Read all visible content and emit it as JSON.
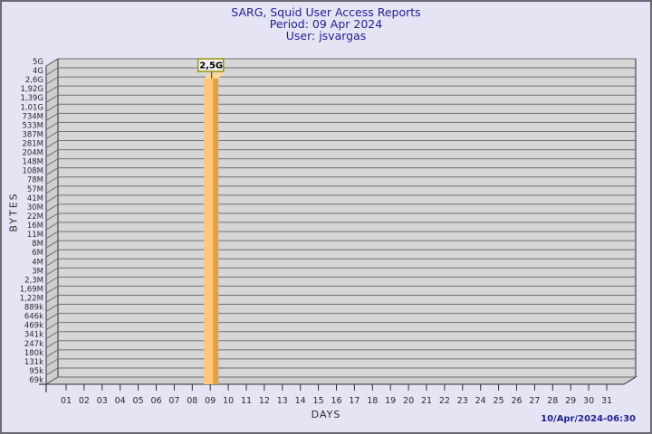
{
  "header": {
    "title": "SARG, Squid User Access Reports",
    "period": "Period: 09 Apr 2024",
    "user": "User: jsvargas"
  },
  "footer": {
    "timestamp": "10/Apr/2024-06:30"
  },
  "chart_data": {
    "type": "bar",
    "title": "SARG, Squid User Access Reports",
    "subtitle": [
      "Period: 09 Apr 2024",
      "User: jsvargas"
    ],
    "xlabel": "DAYS",
    "ylabel": "BYTES",
    "y_scale": "log",
    "y_top_value": 5000000000,
    "y_bottom_value": 69000,
    "grid": true,
    "y_tick_labels": [
      "5G",
      "4G",
      "2,6G",
      "1,92G",
      "1,39G",
      "1,01G",
      "734M",
      "533M",
      "387M",
      "281M",
      "204M",
      "148M",
      "108M",
      "78M",
      "57M",
      "41M",
      "30M",
      "22M",
      "16M",
      "11M",
      "8M",
      "6M",
      "4M",
      "3M",
      "2,3M",
      "1,69M",
      "1,22M",
      "889k",
      "646k",
      "469k",
      "341k",
      "247k",
      "180k",
      "131k",
      "95k",
      "69k"
    ],
    "x_categories": [
      "01",
      "02",
      "03",
      "04",
      "05",
      "06",
      "07",
      "08",
      "09",
      "10",
      "11",
      "12",
      "13",
      "14",
      "15",
      "16",
      "17",
      "18",
      "19",
      "20",
      "21",
      "22",
      "23",
      "24",
      "25",
      "26",
      "27",
      "28",
      "29",
      "30",
      "31"
    ],
    "series": [
      {
        "name": "jsvargas",
        "points": [
          {
            "day": "09",
            "value_label": "2,5G",
            "value_bytes": 2500000000
          }
        ]
      }
    ],
    "colors": {
      "wall": "#d6d6d6",
      "face": "#cfcfcf",
      "grid": "#6f6f6f",
      "outline": "#2f2f2f",
      "bar_light": "#ffc776",
      "bar_dark": "#dfa24b",
      "bar_top": "#fed795",
      "annotation_bg": "#f0f0f0",
      "annotation_border": "#9c9400",
      "annotation_text": "#000000",
      "axis_text": "#2b2b2b"
    }
  }
}
